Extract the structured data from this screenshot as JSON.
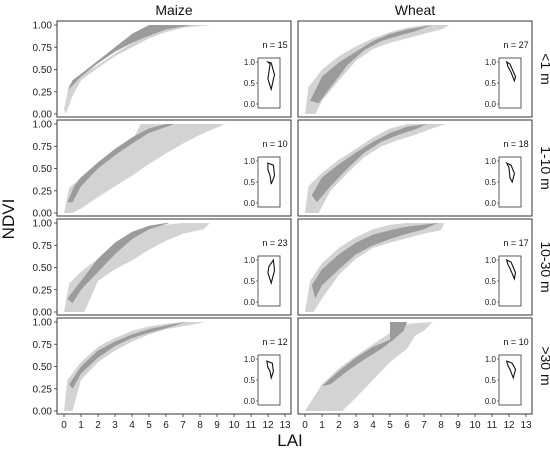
{
  "chart_data": {
    "type": "area",
    "xlabel": "LAI",
    "ylabel": "NDVI",
    "columns": [
      "Maize",
      "Wheat"
    ],
    "rows": [
      "<1 m",
      "1-10 m",
      "10-30 m",
      ">30 m"
    ],
    "xlim": [
      0,
      13
    ],
    "ylim": [
      0,
      1
    ],
    "x_ticks": [
      "0",
      "1",
      "2",
      "3",
      "4",
      "5",
      "6",
      "7",
      "8",
      "9",
      "10",
      "11",
      "12",
      "13"
    ],
    "y_ticks": [
      "0.00",
      "0.25",
      "0.50",
      "0.75",
      "1.00"
    ],
    "inset_ticks": [
      "0.0",
      "0.5",
      "1.0"
    ],
    "colors": {
      "outer_band": "#d3d3d3",
      "inner_band": "#9b9b9b",
      "panel_border": "#333333"
    },
    "panels": [
      {
        "crop": "Maize",
        "range": "<1 m",
        "n_label": "n = 15",
        "outer": [
          [
            0,
            0.05
          ],
          [
            0.3,
            0.33
          ],
          [
            1,
            0.43
          ],
          [
            2,
            0.55
          ],
          [
            3,
            0.68
          ],
          [
            4,
            0.8
          ],
          [
            5,
            0.9
          ],
          [
            6,
            0.97
          ],
          [
            7,
            1
          ],
          [
            8.6,
            1
          ],
          [
            7,
            0.97
          ],
          [
            6,
            0.92
          ],
          [
            5,
            0.85
          ],
          [
            4,
            0.75
          ],
          [
            3,
            0.65
          ],
          [
            2,
            0.52
          ],
          [
            1,
            0.38
          ],
          [
            0.5,
            0.2
          ],
          [
            0.1,
            0
          ]
        ],
        "inner": [
          [
            0.2,
            0.25
          ],
          [
            0.5,
            0.38
          ],
          [
            1,
            0.45
          ],
          [
            2,
            0.6
          ],
          [
            3,
            0.75
          ],
          [
            4,
            0.9
          ],
          [
            5,
            1
          ],
          [
            7.5,
            1
          ],
          [
            6,
            0.95
          ],
          [
            5,
            0.88
          ],
          [
            4,
            0.8
          ],
          [
            3,
            0.7
          ],
          [
            2,
            0.57
          ],
          [
            1,
            0.42
          ],
          [
            0.3,
            0.28
          ]
        ],
        "inset": [
          [
            0.55,
            0.95
          ],
          [
            0.45,
            1.0
          ],
          [
            0.6,
            0.98
          ],
          [
            0.75,
            0.7
          ],
          [
            0.6,
            0.35
          ],
          [
            0.45,
            0.6
          ]
        ]
      },
      {
        "crop": "Wheat",
        "range": "<1 m",
        "n_label": "n = 27",
        "outer": [
          [
            0,
            0
          ],
          [
            0.2,
            0.3
          ],
          [
            1,
            0.5
          ],
          [
            2,
            0.65
          ],
          [
            3,
            0.76
          ],
          [
            4,
            0.85
          ],
          [
            5,
            0.92
          ],
          [
            6,
            0.97
          ],
          [
            7,
            1
          ],
          [
            8.5,
            1
          ],
          [
            8,
            0.95
          ],
          [
            7,
            0.9
          ],
          [
            6,
            0.85
          ],
          [
            5,
            0.8
          ],
          [
            4,
            0.73
          ],
          [
            3,
            0.6
          ],
          [
            2,
            0.38
          ],
          [
            1,
            0.15
          ],
          [
            0.6,
            0
          ]
        ],
        "inner": [
          [
            0.3,
            0.15
          ],
          [
            1,
            0.42
          ],
          [
            2,
            0.58
          ],
          [
            3,
            0.7
          ],
          [
            4,
            0.82
          ],
          [
            5,
            0.9
          ],
          [
            6,
            0.95
          ],
          [
            7.5,
            1
          ],
          [
            6.5,
            0.93
          ],
          [
            5.5,
            0.88
          ],
          [
            4.5,
            0.82
          ],
          [
            3.5,
            0.72
          ],
          [
            2.5,
            0.55
          ],
          [
            1.5,
            0.3
          ],
          [
            0.8,
            0.12
          ]
        ],
        "inset": [
          [
            0.35,
            1.0
          ],
          [
            0.5,
            0.95
          ],
          [
            0.75,
            0.65
          ],
          [
            0.7,
            0.55
          ],
          [
            0.55,
            0.75
          ],
          [
            0.4,
            0.9
          ]
        ]
      },
      {
        "crop": "Maize",
        "range": "1-10 m",
        "n_label": "n = 10",
        "outer": [
          [
            0,
            0
          ],
          [
            0.3,
            0.28
          ],
          [
            1,
            0.4
          ],
          [
            2,
            0.53
          ],
          [
            3,
            0.65
          ],
          [
            4,
            0.8
          ],
          [
            4.5,
            1
          ],
          [
            9.5,
            1
          ],
          [
            8,
            0.88
          ],
          [
            7,
            0.78
          ],
          [
            6,
            0.67
          ],
          [
            5,
            0.55
          ],
          [
            4,
            0.42
          ],
          [
            3,
            0.3
          ],
          [
            2,
            0.18
          ],
          [
            1,
            0.05
          ],
          [
            0.5,
            0
          ]
        ],
        "inner": [
          [
            0.2,
            0.12
          ],
          [
            0.6,
            0.3
          ],
          [
            1,
            0.4
          ],
          [
            2,
            0.57
          ],
          [
            3,
            0.72
          ],
          [
            4,
            0.85
          ],
          [
            5,
            0.95
          ],
          [
            6,
            1
          ],
          [
            6.5,
            1
          ],
          [
            5,
            0.9
          ],
          [
            4,
            0.78
          ],
          [
            3,
            0.65
          ],
          [
            2,
            0.5
          ],
          [
            1,
            0.3
          ],
          [
            0.5,
            0.12
          ]
        ],
        "inset": [
          [
            0.45,
            0.95
          ],
          [
            0.7,
            0.9
          ],
          [
            0.75,
            0.65
          ],
          [
            0.6,
            0.45
          ],
          [
            0.55,
            0.65
          ],
          [
            0.45,
            0.8
          ]
        ]
      },
      {
        "crop": "Wheat",
        "range": "1-10 m",
        "n_label": "n = 18",
        "outer": [
          [
            0,
            0
          ],
          [
            0.2,
            0.3
          ],
          [
            1,
            0.45
          ],
          [
            2,
            0.6
          ],
          [
            3,
            0.72
          ],
          [
            4,
            0.85
          ],
          [
            5,
            0.95
          ],
          [
            6,
            1
          ],
          [
            8.3,
            1
          ],
          [
            7.5,
            0.95
          ],
          [
            6.5,
            0.88
          ],
          [
            5.5,
            0.82
          ],
          [
            4.5,
            0.75
          ],
          [
            3.5,
            0.63
          ],
          [
            2.5,
            0.45
          ],
          [
            1.5,
            0.25
          ],
          [
            0.8,
            0
          ]
        ],
        "inner": [
          [
            0.4,
            0.2
          ],
          [
            1,
            0.4
          ],
          [
            2,
            0.55
          ],
          [
            3,
            0.68
          ],
          [
            4,
            0.8
          ],
          [
            5,
            0.9
          ],
          [
            6,
            0.97
          ],
          [
            7.2,
            1
          ],
          [
            6.5,
            0.94
          ],
          [
            5.5,
            0.88
          ],
          [
            4.5,
            0.8
          ],
          [
            3.5,
            0.68
          ],
          [
            2.5,
            0.5
          ],
          [
            1.5,
            0.3
          ],
          [
            0.7,
            0.12
          ]
        ],
        "inset": [
          [
            0.35,
            0.95
          ],
          [
            0.55,
            0.9
          ],
          [
            0.7,
            0.7
          ],
          [
            0.6,
            0.5
          ],
          [
            0.5,
            0.6
          ],
          [
            0.45,
            0.85
          ]
        ]
      },
      {
        "crop": "Maize",
        "range": "10-30 m",
        "n_label": "n = 23",
        "outer": [
          [
            0,
            0
          ],
          [
            0.3,
            0.32
          ],
          [
            1,
            0.45
          ],
          [
            2,
            0.6
          ],
          [
            3,
            0.75
          ],
          [
            4,
            0.88
          ],
          [
            5,
            0.95
          ],
          [
            6,
            0.98
          ],
          [
            7,
            1
          ],
          [
            8.6,
            1
          ],
          [
            8.2,
            0.93
          ],
          [
            7,
            0.88
          ],
          [
            6,
            0.8
          ],
          [
            5,
            0.7
          ],
          [
            4,
            0.58
          ],
          [
            3,
            0.48
          ],
          [
            2,
            0.35
          ],
          [
            1.2,
            0
          ],
          [
            0.5,
            0
          ]
        ],
        "inner": [
          [
            0.2,
            0.15
          ],
          [
            1,
            0.35
          ],
          [
            2,
            0.6
          ],
          [
            3,
            0.78
          ],
          [
            4,
            0.9
          ],
          [
            5,
            0.97
          ],
          [
            6,
            1
          ],
          [
            6.2,
            1
          ],
          [
            5,
            0.93
          ],
          [
            4,
            0.82
          ],
          [
            3,
            0.65
          ],
          [
            2,
            0.45
          ],
          [
            1,
            0.25
          ],
          [
            0.5,
            0.1
          ]
        ],
        "inset": [
          [
            0.5,
            0.85
          ],
          [
            0.7,
            1.0
          ],
          [
            0.75,
            0.75
          ],
          [
            0.6,
            0.45
          ],
          [
            0.45,
            0.7
          ]
        ]
      },
      {
        "crop": "Wheat",
        "range": "10-30 m",
        "n_label": "n = 17",
        "outer": [
          [
            0,
            0
          ],
          [
            0.3,
            0.35
          ],
          [
            1,
            0.55
          ],
          [
            2,
            0.72
          ],
          [
            3,
            0.84
          ],
          [
            4,
            0.93
          ],
          [
            5,
            0.98
          ],
          [
            6,
            1
          ],
          [
            8.2,
            1
          ],
          [
            8,
            0.92
          ],
          [
            7,
            0.88
          ],
          [
            6,
            0.83
          ],
          [
            5,
            0.78
          ],
          [
            4,
            0.72
          ],
          [
            3,
            0.6
          ],
          [
            2,
            0.42
          ],
          [
            1,
            0.15
          ],
          [
            0.5,
            0
          ]
        ],
        "inner": [
          [
            0.4,
            0.3
          ],
          [
            1,
            0.48
          ],
          [
            2,
            0.65
          ],
          [
            3,
            0.78
          ],
          [
            4,
            0.87
          ],
          [
            5,
            0.92
          ],
          [
            6,
            0.96
          ],
          [
            7.8,
            1
          ],
          [
            7,
            0.93
          ],
          [
            6,
            0.88
          ],
          [
            5,
            0.82
          ],
          [
            4,
            0.75
          ],
          [
            3,
            0.65
          ],
          [
            2,
            0.48
          ],
          [
            1,
            0.3
          ],
          [
            0.6,
            0.15
          ]
        ],
        "inset": [
          [
            0.35,
            1.0
          ],
          [
            0.55,
            0.95
          ],
          [
            0.75,
            0.7
          ],
          [
            0.7,
            0.55
          ],
          [
            0.5,
            0.8
          ],
          [
            0.4,
            0.9
          ]
        ]
      },
      {
        "crop": "Maize",
        "range": ">30 m",
        "n_label": "n = 12",
        "outer": [
          [
            0,
            0
          ],
          [
            0.2,
            0.35
          ],
          [
            1,
            0.55
          ],
          [
            2,
            0.72
          ],
          [
            3,
            0.82
          ],
          [
            4,
            0.9
          ],
          [
            5,
            0.95
          ],
          [
            6,
            0.98
          ],
          [
            7,
            1
          ],
          [
            8.3,
            1
          ],
          [
            7.5,
            0.97
          ],
          [
            6,
            0.92
          ],
          [
            5,
            0.86
          ],
          [
            4,
            0.78
          ],
          [
            3,
            0.68
          ],
          [
            2,
            0.55
          ],
          [
            1,
            0.35
          ],
          [
            0.5,
            0
          ]
        ],
        "inner": [
          [
            0.3,
            0.3
          ],
          [
            1,
            0.5
          ],
          [
            2,
            0.68
          ],
          [
            3,
            0.78
          ],
          [
            4,
            0.86
          ],
          [
            5,
            0.92
          ],
          [
            6.5,
            0.98
          ],
          [
            7.2,
            1
          ],
          [
            6,
            0.93
          ],
          [
            5,
            0.88
          ],
          [
            4,
            0.82
          ],
          [
            3,
            0.73
          ],
          [
            2,
            0.6
          ],
          [
            1,
            0.42
          ],
          [
            0.5,
            0.25
          ]
        ],
        "inset": [
          [
            0.4,
            0.95
          ],
          [
            0.65,
            0.9
          ],
          [
            0.7,
            0.7
          ],
          [
            0.6,
            0.55
          ],
          [
            0.55,
            0.7
          ],
          [
            0.45,
            0.8
          ]
        ]
      },
      {
        "crop": "Wheat",
        "range": ">30 m",
        "n_label": "n = 10",
        "outer": [
          [
            0,
            0
          ],
          [
            0.5,
            0.15
          ],
          [
            1,
            0.3
          ],
          [
            2,
            0.48
          ],
          [
            3,
            0.62
          ],
          [
            4,
            0.75
          ],
          [
            5,
            0.88
          ],
          [
            6,
            0.98
          ],
          [
            7.5,
            1
          ],
          [
            7,
            0.9
          ],
          [
            6.5,
            0.85
          ],
          [
            6,
            0.7
          ],
          [
            5,
            0.55
          ],
          [
            4,
            0.35
          ],
          [
            3,
            0.15
          ],
          [
            2.2,
            0
          ]
        ],
        "inner": [
          [
            1,
            0.28
          ],
          [
            2,
            0.45
          ],
          [
            3,
            0.6
          ],
          [
            4,
            0.72
          ],
          [
            5,
            0.8
          ],
          [
            5,
            1
          ],
          [
            6,
            1
          ],
          [
            5.8,
            0.9
          ],
          [
            5.2,
            0.8
          ],
          [
            4.5,
            0.7
          ],
          [
            3.5,
            0.58
          ],
          [
            2.5,
            0.45
          ],
          [
            1.5,
            0.3
          ]
        ],
        "inset": [
          [
            0.35,
            0.95
          ],
          [
            0.6,
            0.9
          ],
          [
            0.75,
            0.75
          ],
          [
            0.65,
            0.55
          ],
          [
            0.5,
            0.75
          ],
          [
            0.4,
            0.85
          ]
        ]
      }
    ]
  }
}
